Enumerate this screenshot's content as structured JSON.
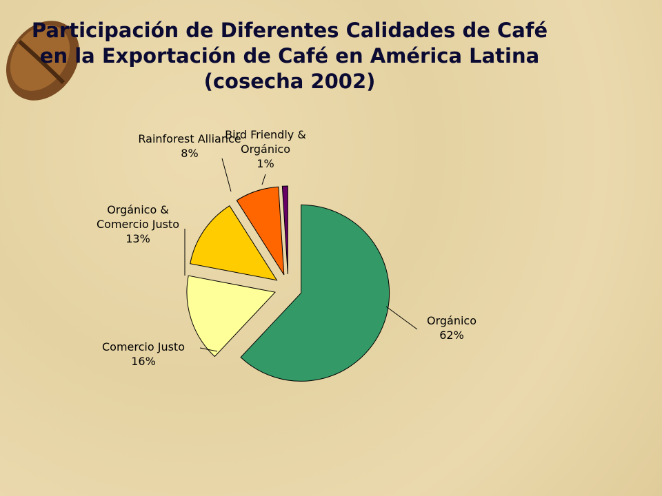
{
  "chart_data": {
    "type": "pie",
    "title": "Participación de Diferentes Calidades de Café en la Exportación de Café en América Latina (cosecha 2002)",
    "categories": [
      "Orgánico",
      "Comercio Justo",
      "Orgánico & Comercio Justo",
      "Rainforest Alliance",
      "Bird Friendly & Orgánico"
    ],
    "values": [
      62,
      16,
      13,
      8,
      1
    ],
    "value_labels": [
      "62%",
      "16%",
      "13%",
      "8%",
      "1%"
    ],
    "colors": [
      "#339966",
      "#ffff99",
      "#ffcc00",
      "#ff6600",
      "#660066"
    ]
  }
}
